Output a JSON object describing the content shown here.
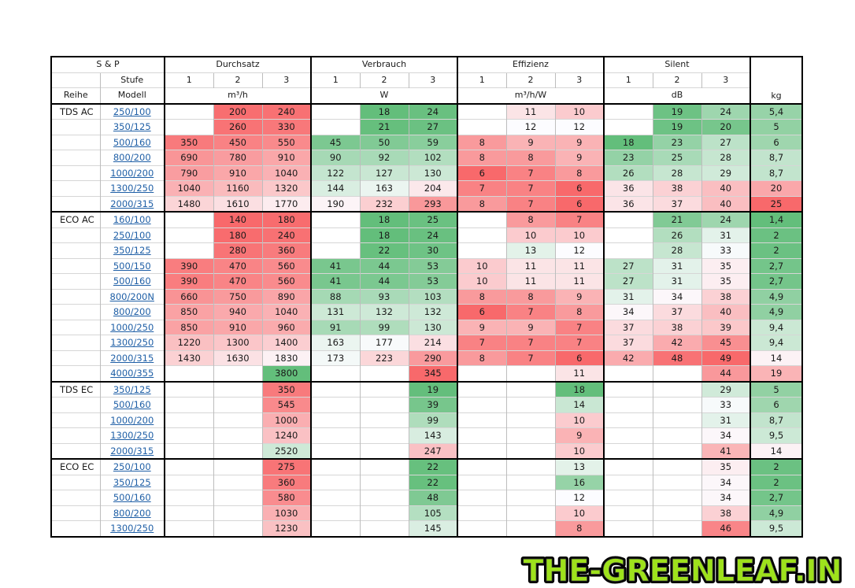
{
  "header": {
    "group_row": [
      "S & P",
      "Durchsatz",
      "Verbrauch",
      "Effizienz",
      "Silent"
    ],
    "stufe_label": "Stufe",
    "steps": [
      "1",
      "2",
      "3"
    ],
    "reihe_label": "Reihe",
    "modell_label": "Modell",
    "units": [
      "m³/h",
      "W",
      "m³/h/W",
      "dB"
    ],
    "kg_label": "kg"
  },
  "groups": [
    {
      "series": "TDS AC",
      "rows": [
        {
          "model": "250/100",
          "cells": [
            "",
            "200",
            "240",
            "",
            "18",
            "24",
            "",
            "11",
            "10",
            "",
            "19",
            "24",
            "5,4"
          ]
        },
        {
          "model": "350/125",
          "cells": [
            "",
            "260",
            "330",
            "",
            "21",
            "27",
            "",
            "12",
            "12",
            "",
            "19",
            "20",
            "5"
          ]
        },
        {
          "model": "500/160",
          "cells": [
            "350",
            "450",
            "550",
            "45",
            "50",
            "59",
            "8",
            "9",
            "9",
            "18",
            "23",
            "27",
            "6"
          ]
        },
        {
          "model": "800/200",
          "cells": [
            "690",
            "780",
            "910",
            "90",
            "92",
            "102",
            "8",
            "8",
            "9",
            "23",
            "25",
            "28",
            "8,7"
          ]
        },
        {
          "model": "1000/200",
          "cells": [
            "790",
            "910",
            "1040",
            "122",
            "127",
            "130",
            "6",
            "7",
            "8",
            "26",
            "28",
            "29",
            "8,7"
          ]
        },
        {
          "model": "1300/250",
          "cells": [
            "1040",
            "1160",
            "1320",
            "144",
            "163",
            "204",
            "7",
            "7",
            "6",
            "36",
            "38",
            "40",
            "20"
          ]
        },
        {
          "model": "2000/315",
          "cells": [
            "1480",
            "1610",
            "1770",
            "190",
            "232",
            "293",
            "8",
            "7",
            "6",
            "36",
            "37",
            "40",
            "25"
          ]
        }
      ]
    },
    {
      "series": "ECO AC",
      "rows": [
        {
          "model": "160/100",
          "cells": [
            "",
            "140",
            "180",
            "",
            "18",
            "25",
            "",
            "8",
            "7",
            "",
            "21",
            "24",
            "1,4"
          ]
        },
        {
          "model": "250/100",
          "cells": [
            "",
            "180",
            "240",
            "",
            "18",
            "24",
            "",
            "10",
            "10",
            "",
            "26",
            "31",
            "2"
          ]
        },
        {
          "model": "350/125",
          "cells": [
            "",
            "280",
            "360",
            "",
            "22",
            "30",
            "",
            "13",
            "12",
            "",
            "28",
            "33",
            "2"
          ]
        },
        {
          "model": "500/150",
          "cells": [
            "390",
            "470",
            "560",
            "41",
            "44",
            "53",
            "10",
            "11",
            "11",
            "27",
            "31",
            "35",
            "2,7"
          ]
        },
        {
          "model": "500/160",
          "cells": [
            "390",
            "470",
            "560",
            "41",
            "44",
            "53",
            "10",
            "11",
            "11",
            "27",
            "31",
            "35",
            "2,7"
          ]
        },
        {
          "model": "800/200N",
          "cells": [
            "660",
            "750",
            "890",
            "88",
            "93",
            "103",
            "8",
            "8",
            "9",
            "31",
            "34",
            "38",
            "4,9"
          ]
        },
        {
          "model": "800/200",
          "cells": [
            "850",
            "940",
            "1040",
            "131",
            "132",
            "132",
            "6",
            "7",
            "8",
            "34",
            "37",
            "40",
            "4,9"
          ]
        },
        {
          "model": "1000/250",
          "cells": [
            "850",
            "910",
            "960",
            "91",
            "99",
            "130",
            "9",
            "9",
            "7",
            "37",
            "38",
            "39",
            "9,4"
          ]
        },
        {
          "model": "1300/250",
          "cells": [
            "1220",
            "1300",
            "1400",
            "163",
            "177",
            "214",
            "7",
            "7",
            "7",
            "37",
            "42",
            "45",
            "9,4"
          ]
        },
        {
          "model": "2000/315",
          "cells": [
            "1430",
            "1630",
            "1830",
            "173",
            "223",
            "290",
            "8",
            "7",
            "6",
            "42",
            "48",
            "49",
            "14"
          ]
        },
        {
          "model": "4000/355",
          "cells": [
            "",
            "",
            "3800",
            "",
            "",
            "345",
            "",
            "",
            "11",
            "",
            "",
            "44",
            "19"
          ]
        }
      ]
    },
    {
      "series": "TDS EC",
      "rows": [
        {
          "model": "350/125",
          "cells": [
            "",
            "",
            "350",
            "",
            "",
            "19",
            "",
            "",
            "18",
            "",
            "",
            "29",
            "5"
          ]
        },
        {
          "model": "500/160",
          "cells": [
            "",
            "",
            "545",
            "",
            "",
            "39",
            "",
            "",
            "14",
            "",
            "",
            "33",
            "6"
          ]
        },
        {
          "model": "1000/200",
          "cells": [
            "",
            "",
            "1000",
            "",
            "",
            "99",
            "",
            "",
            "10",
            "",
            "",
            "31",
            "8,7"
          ]
        },
        {
          "model": "1300/250",
          "cells": [
            "",
            "",
            "1240",
            "",
            "",
            "143",
            "",
            "",
            "9",
            "",
            "",
            "34",
            "9,5"
          ]
        },
        {
          "model": "2000/315",
          "cells": [
            "",
            "",
            "2520",
            "",
            "",
            "247",
            "",
            "",
            "10",
            "",
            "",
            "41",
            "14"
          ]
        }
      ]
    },
    {
      "series": "ECO EC",
      "rows": [
        {
          "model": "250/100",
          "cells": [
            "",
            "",
            "275",
            "",
            "",
            "22",
            "",
            "",
            "13",
            "",
            "",
            "35",
            "2"
          ]
        },
        {
          "model": "350/125",
          "cells": [
            "",
            "",
            "360",
            "",
            "",
            "22",
            "",
            "",
            "16",
            "",
            "",
            "34",
            "2"
          ]
        },
        {
          "model": "500/160",
          "cells": [
            "",
            "",
            "580",
            "",
            "",
            "48",
            "",
            "",
            "12",
            "",
            "",
            "34",
            "2,7"
          ]
        },
        {
          "model": "800/200",
          "cells": [
            "",
            "",
            "1030",
            "",
            "",
            "105",
            "",
            "",
            "10",
            "",
            "",
            "38",
            "4,9"
          ]
        },
        {
          "model": "1300/250",
          "cells": [
            "",
            "",
            "1230",
            "",
            "",
            "145",
            "",
            "",
            "8",
            "",
            "",
            "46",
            "9,5"
          ]
        }
      ]
    }
  ],
  "colors": {
    "link": "#1f5fa6",
    "scale_green": "#63be7b",
    "scale_white": "#fcfcff",
    "scale_red": "#f8696b",
    "logo_fill": "#9ee21c",
    "logo_outline": "#000000",
    "logo_stroke": "#3a3a3a"
  },
  "watermark": {
    "text": "THE-GREENLEAF.IN"
  }
}
